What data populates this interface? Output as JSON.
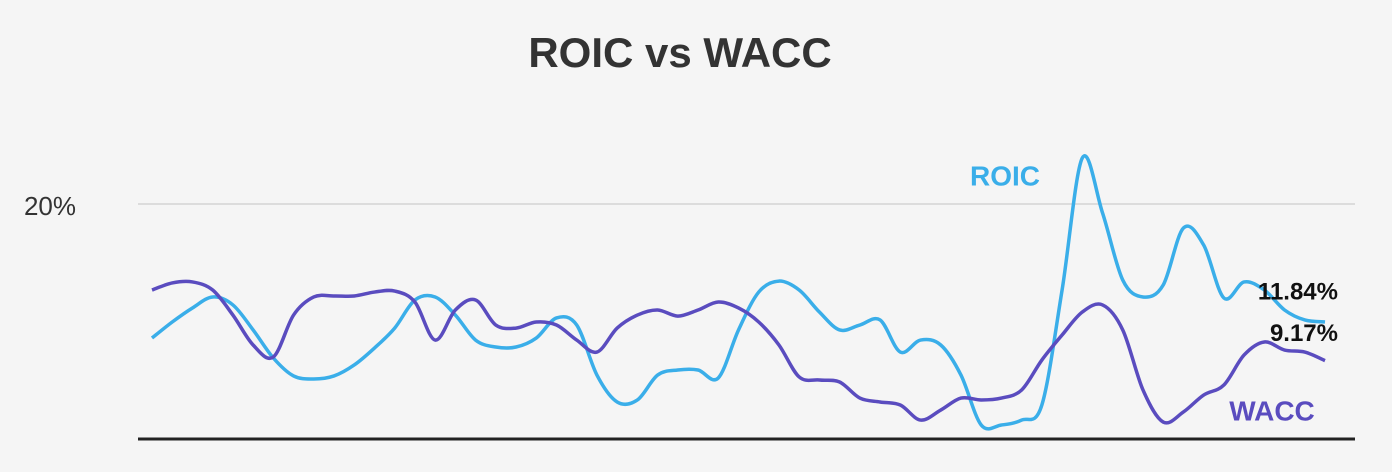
{
  "chart_data": {
    "type": "line",
    "title": "ROIC vs WACC",
    "categories": [
      null,
      null,
      null,
      null,
      null,
      null,
      null,
      null,
      null,
      null,
      null,
      null,
      null,
      null,
      null,
      null,
      null,
      null,
      null,
      null,
      null,
      null,
      null,
      null,
      null,
      null,
      null,
      null,
      null,
      null,
      null,
      null,
      null,
      null,
      null,
      null,
      null,
      null,
      null,
      null,
      null,
      null,
      null,
      null,
      null,
      null,
      null,
      null,
      null,
      null,
      null,
      null,
      null,
      null,
      null,
      null,
      null,
      null,
      null
    ],
    "ylim": [
      3.75,
      24.5
    ],
    "yticks": [
      {
        "value": 20,
        "label": "20%"
      }
    ],
    "grid": true,
    "series": [
      {
        "name": "ROIC",
        "color": "#3aaee9",
        "values": [
          10.73,
          11.84,
          12.81,
          13.57,
          13.02,
          11.29,
          9.35,
          8.11,
          7.9,
          8.11,
          8.87,
          10.04,
          11.42,
          13.36,
          13.57,
          12.32,
          10.59,
          10.11,
          10.11,
          10.73,
          12.12,
          11.63,
          8.17,
          6.31,
          6.45,
          8.17,
          8.52,
          8.52,
          7.97,
          11.29,
          13.91,
          14.67,
          14.05,
          12.53,
          11.29,
          11.63,
          11.98,
          9.76,
          10.59,
          10.25,
          8.17,
          4.72,
          4.72,
          5.06,
          6.1,
          14.05,
          23.18,
          19.38,
          14.74,
          13.57,
          14.4,
          18.34,
          17.16,
          13.5,
          14.61,
          14.05,
          12.67,
          11.98,
          11.84
        ],
        "value_labels": [
          null,
          null,
          null,
          null,
          null,
          null,
          null,
          null,
          null,
          null,
          null,
          null,
          null,
          null,
          null,
          null,
          null,
          null,
          null,
          null,
          null,
          null,
          null,
          null,
          null,
          null,
          null,
          null,
          null,
          null,
          null,
          null,
          null,
          null,
          null,
          null,
          null,
          null,
          null,
          null,
          null,
          null,
          null,
          null,
          null,
          null,
          null,
          null,
          null,
          null,
          null,
          null,
          null,
          null,
          null,
          null,
          null,
          null,
          "11.84%"
        ]
      },
      {
        "name": "WACC",
        "color": "#5a4cbf",
        "values": [
          14.05,
          14.54,
          14.61,
          14.05,
          12.32,
          10.25,
          9.42,
          12.32,
          13.57,
          13.64,
          13.64,
          13.91,
          13.98,
          13.22,
          10.59,
          12.67,
          13.36,
          11.63,
          11.42,
          11.84,
          11.63,
          10.59,
          9.76,
          11.42,
          12.32,
          12.67,
          12.25,
          12.67,
          13.22,
          12.81,
          11.84,
          10.25,
          8.04,
          7.83,
          7.69,
          6.58,
          6.31,
          6.1,
          5.06,
          5.75,
          6.58,
          6.45,
          6.58,
          7.14,
          9.21,
          10.94,
          12.53,
          13.02,
          11.29,
          7.14,
          4.92,
          5.62,
          6.79,
          7.48,
          9.56,
          10.46,
          9.9,
          9.76,
          9.17
        ],
        "value_labels": [
          null,
          null,
          null,
          null,
          null,
          null,
          null,
          null,
          null,
          null,
          null,
          null,
          null,
          null,
          null,
          null,
          null,
          null,
          null,
          null,
          null,
          null,
          null,
          null,
          null,
          null,
          null,
          null,
          null,
          null,
          null,
          null,
          null,
          null,
          null,
          null,
          null,
          null,
          null,
          null,
          null,
          null,
          null,
          null,
          null,
          null,
          null,
          null,
          null,
          null,
          null,
          null,
          null,
          null,
          null,
          null,
          null,
          null,
          "9.17%"
        ]
      }
    ]
  }
}
